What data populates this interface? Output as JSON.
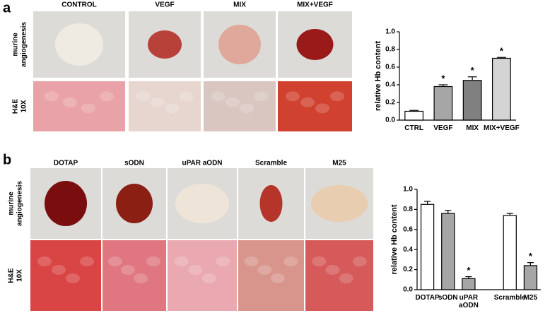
{
  "panels": [
    {
      "label": "a",
      "columns": [
        "CONTROL",
        "VEGF",
        "MIX",
        "MIX+VEGF"
      ],
      "rows": [
        [
          "murine",
          "angiogenesis"
        ],
        [
          "H&E",
          "10X"
        ]
      ]
    },
    {
      "label": "b",
      "columns": [
        "DOTAP",
        "sODN",
        "uPAR aODN",
        "Scramble",
        "M25"
      ],
      "rows": [
        [
          "murine",
          "angiogenesis"
        ],
        [
          "H&E",
          "10X"
        ]
      ]
    }
  ],
  "chart_data": [
    {
      "type": "bar",
      "ylabel": "relative Hb content",
      "categories": [
        "CTRL",
        "VEGF",
        "MIX",
        "MIX+VEGF"
      ],
      "values": [
        0.1,
        0.38,
        0.45,
        0.7
      ],
      "errors": [
        0.01,
        0.02,
        0.04,
        0.01
      ],
      "colors": [
        "#ffffff",
        "#a6a6a6",
        "#808080",
        "#d4d4d4"
      ],
      "annotations": [
        null,
        "*",
        "*",
        "*"
      ],
      "ylim": [
        0,
        1
      ],
      "yticks": [
        {
          "value": 0,
          "label": "0.0"
        },
        0.2,
        0.4,
        0.6,
        0.8,
        {
          "value": 1,
          "label": "1.0"
        }
      ],
      "grid": false
    },
    {
      "type": "bar",
      "ylabel": "relative Hb content",
      "categories": [
        "DOTAP",
        "sODN",
        "uPAR aODN",
        null,
        "Scramble",
        "M25"
      ],
      "values": [
        0.85,
        0.76,
        0.11,
        null,
        0.74,
        0.24
      ],
      "errors": [
        0.03,
        0.03,
        0.02,
        null,
        0.02,
        0.03
      ],
      "colors": [
        "#ffffff",
        "#a6a6a6",
        "#a6a6a6",
        null,
        "#ffffff",
        "#a6a6a6"
      ],
      "annotations": [
        null,
        null,
        "*",
        null,
        null,
        "*"
      ],
      "ylim": [
        0,
        1
      ],
      "yticks": [
        {
          "value": 0,
          "label": "0.0"
        },
        0.2,
        0.4,
        0.6,
        0.8,
        {
          "value": 1,
          "label": "1.0"
        }
      ],
      "grid": false
    }
  ]
}
